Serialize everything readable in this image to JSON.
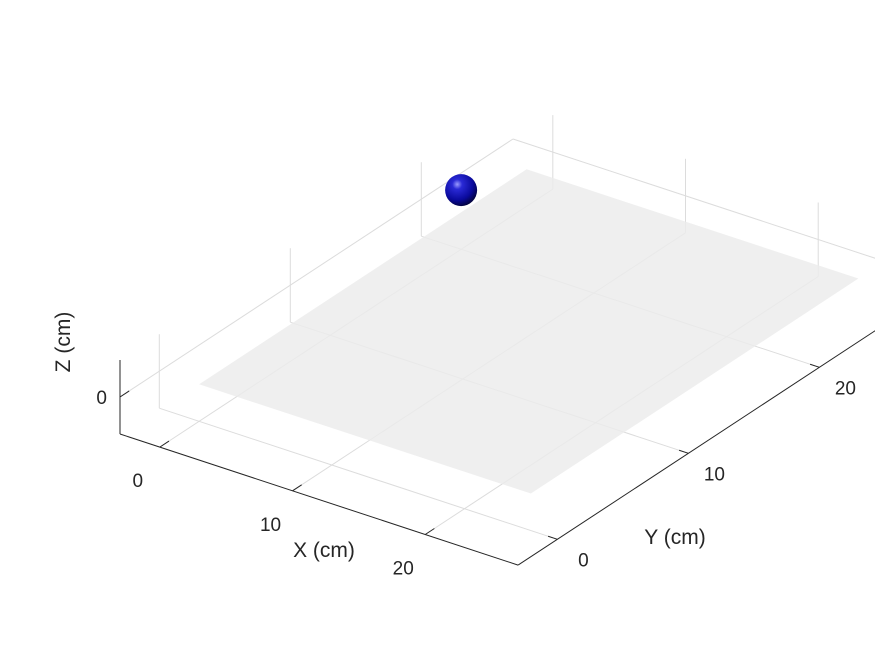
{
  "chart_data": {
    "type": "scatter3d",
    "title": "",
    "xlabel": "X (cm)",
    "ylabel": "Y (cm)",
    "zlabel": "Z (cm)",
    "xlim": [
      -3,
      27
    ],
    "ylim": [
      -3,
      27
    ],
    "zlim": [
      -1,
      1
    ],
    "xticks": [
      0,
      10,
      20
    ],
    "yticks": [
      0,
      10,
      20
    ],
    "zticks": [
      0
    ],
    "xtick_labels": [
      "0",
      "10",
      "20"
    ],
    "ytick_labels": [
      "0",
      "10",
      "20"
    ],
    "ztick_labels": [
      "0"
    ],
    "grid": true,
    "plane": {
      "z": 0,
      "extent": [
        [
          0,
          25
        ],
        [
          0,
          25
        ]
      ],
      "color": "#ececec"
    },
    "points": [
      {
        "x": 0,
        "y": 20,
        "z": 0.6,
        "color": "#0a0a9c",
        "marker": "sphere"
      }
    ]
  },
  "colors": {
    "axis": "#262626",
    "grid": "#dcdcdc",
    "plane": "#ececec",
    "sphere": "#0a0a9c"
  }
}
